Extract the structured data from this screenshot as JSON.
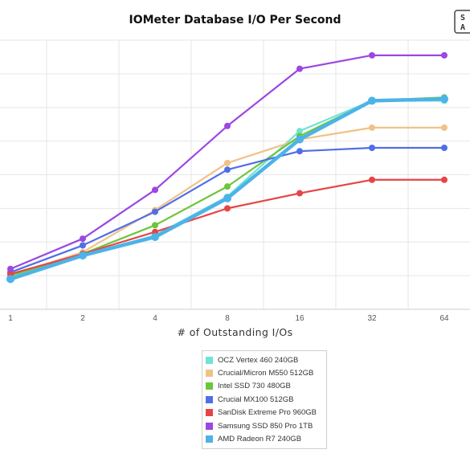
{
  "chart_data": {
    "type": "line",
    "title": "IOMeter Database I/O Per Second",
    "xlabel": "# of Outstanding I/Os",
    "ylabel": "",
    "categories": [
      "1",
      "2",
      "4",
      "8",
      "16",
      "32",
      "64"
    ],
    "grid": true,
    "legend_position": "bottom",
    "series": [
      {
        "name": "OCZ Vertex 460 240GB",
        "color": "#6fe3d6",
        "values": [
          9.5,
          16,
          22,
          33.5,
          53,
          62,
          62
        ]
      },
      {
        "name": "Crucial/Micron M550 512GB",
        "color": "#f0c287",
        "values": [
          10,
          17,
          29.5,
          43.5,
          50.5,
          54,
          54
        ]
      },
      {
        "name": "Intel SSD 730 480GB",
        "color": "#6cc63a",
        "values": [
          10,
          16.5,
          25,
          36.5,
          51.5,
          62,
          63
        ]
      },
      {
        "name": "Crucial MX100 512GB",
        "color": "#4f6fe6",
        "values": [
          11,
          19,
          29,
          41.5,
          47,
          48,
          48
        ]
      },
      {
        "name": "SanDisk Extreme Pro 960GB",
        "color": "#e64545",
        "values": [
          10.5,
          16.5,
          23,
          30,
          34.5,
          38.5,
          38.5
        ]
      },
      {
        "name": "Samsung SSD 850 Pro 1TB",
        "color": "#9b47e3",
        "values": [
          12,
          21,
          35.5,
          54.5,
          71.5,
          75.5,
          75.5
        ]
      },
      {
        "name": "AMD Radeon R7 240GB",
        "color": "#4cb3e8",
        "values": [
          9,
          16,
          21.5,
          33,
          50.5,
          62,
          62.5
        ]
      }
    ]
  },
  "logo_text": "S A"
}
